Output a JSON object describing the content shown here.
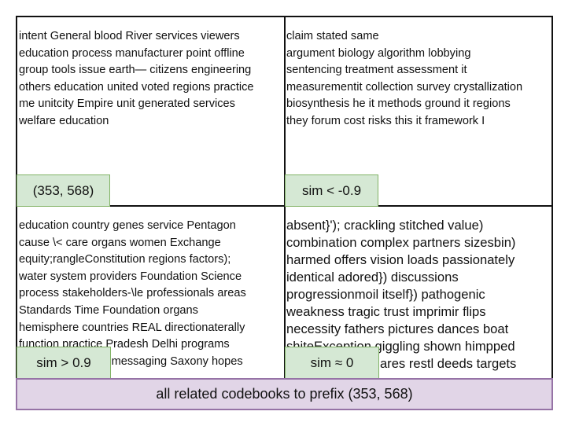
{
  "panels": {
    "top_left": {
      "lines": [
        " intent General blood River services viewers",
        "education process manufacturer point offline",
        "group tools issue earth— citizens engineering",
        "others education united voted regions practice",
        "me unitcity Empire unit generated services",
        "welfare education"
      ],
      "tag": "(353, 568)"
    },
    "top_right": {
      "lines": [
        "claim stated same",
        "argument biology algorithm lobbying",
        "sentencing treatment assessment it",
        "measurementit collection survey crystallization",
        "biosynthesis he it methods ground it regions",
        "they forum cost risks this it framework I"
      ],
      "tag": "sim < -0.9"
    },
    "bottom_left": {
      "lines": [
        " education country genes service Pentagon",
        "cause \\< care organs women Exchange",
        "equity;rangleConstitution regions factors);",
        "water system  providers Foundation Science",
        "process stakeholders-\\le professionals areas",
        "Standards Time Foundation  organs",
        "hemisphere countries REAL directionaterally",
        "function practice  Pradesh Delhi programs",
        "                             messaging Saxony hopes"
      ],
      "tag": "sim > 0.9"
    },
    "bottom_right": {
      "lines": [
        " absent}'); crackling stitched value)",
        "combination complex partners sizesbin)",
        "harmed offers vision loads passionately",
        "identical adored}) discussions",
        "progressionmoil itself}) pathogenic",
        "weakness tragic trust imprimir flips",
        "necessity fathers pictures dances boat",
        "shiteException giggling shown himpped",
        "                         lares restl deeds targets"
      ],
      "tag": "sim ≈ 0"
    }
  },
  "caption": "all related codebooks to prefix (353, 568)"
}
